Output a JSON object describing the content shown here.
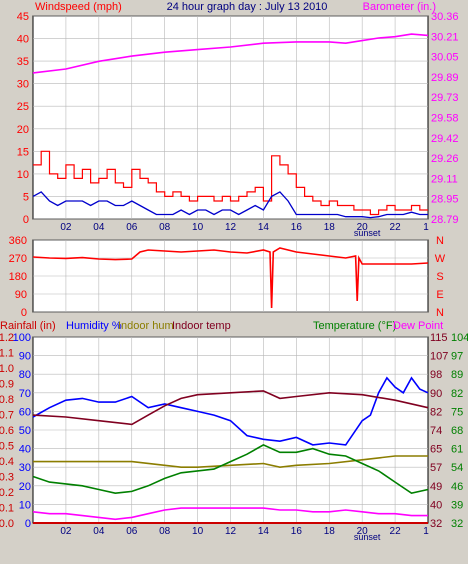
{
  "colors": {
    "background": "#d4d0c8",
    "plot_bg": "#ffffff",
    "grid": "#b8b8b8",
    "wind": "#ff0000",
    "wind_avg": "#0000cc",
    "barometer": "#ff00ff",
    "direction": "#ff0000",
    "humidity": "#0000ff",
    "indoor_hum": "#8b7d00",
    "indoor_temp": "#800020",
    "temperature": "#008000",
    "dew_point": "#ff00ff",
    "rainfall": "#cc0000",
    "title_text": "#000080"
  },
  "chart_data": [
    {
      "type": "line",
      "title": "24 hour graph day : July 13 2010",
      "left_axis_label": "Windspeed (mph)",
      "right_axis_label": "Barometer (in.)",
      "x_ticks": [
        "02",
        "04",
        "06",
        "08",
        "10",
        "12",
        "14",
        "16",
        "18",
        "20",
        "22"
      ],
      "x_end_tick": "1",
      "x_annotation": "sunset",
      "x_range": [
        0,
        24
      ],
      "left_ylim": [
        0,
        45
      ],
      "left_ticks": [
        "45",
        "40",
        "35",
        "30",
        "25",
        "20",
        "15",
        "10",
        "5",
        "0"
      ],
      "right_ylim": [
        28.79,
        30.36
      ],
      "right_ticks": [
        "30.36",
        "30.21",
        "30.05",
        "29.89",
        "29.73",
        "29.58",
        "29.42",
        "29.26",
        "29.11",
        "28.95",
        "28.79"
      ],
      "grid": true,
      "series": [
        {
          "name": "Windspeed (mph)",
          "axis": "left",
          "color": "wind",
          "x": [
            0.0,
            0.5,
            1.0,
            1.5,
            2.0,
            2.5,
            3.0,
            3.5,
            4.0,
            4.5,
            5.0,
            5.5,
            6.0,
            6.5,
            7.0,
            7.5,
            8.0,
            8.5,
            9.0,
            9.5,
            10.0,
            10.5,
            11.0,
            11.5,
            12.0,
            12.5,
            13.0,
            13.5,
            14.0,
            14.5,
            15.0,
            15.5,
            16.0,
            16.5,
            17.0,
            17.5,
            18.0,
            18.5,
            19.0,
            19.5,
            20.0,
            20.5,
            21.0,
            21.5,
            22.0,
            22.5,
            23.0,
            23.5,
            24.0
          ],
          "y": [
            12,
            15,
            10,
            9,
            12,
            9,
            11,
            8,
            9,
            11,
            8,
            7,
            11,
            9,
            8,
            6,
            5,
            6,
            5,
            4,
            5,
            5,
            4,
            5,
            4,
            5,
            6,
            7,
            4,
            14,
            12,
            10,
            7,
            5,
            4,
            3,
            4,
            3,
            3,
            2,
            2,
            1,
            2,
            3,
            2,
            2,
            3,
            2,
            2
          ]
        },
        {
          "name": "Average wind",
          "axis": "left",
          "color": "wind_avg",
          "x": [
            0.0,
            0.5,
            1.0,
            1.5,
            2.0,
            2.5,
            3.0,
            3.5,
            4.0,
            4.5,
            5.0,
            5.5,
            6.0,
            6.5,
            7.0,
            7.5,
            8.0,
            8.5,
            9.0,
            9.5,
            10.0,
            10.5,
            11.0,
            11.5,
            12.0,
            12.5,
            13.0,
            13.5,
            14.0,
            14.5,
            15.0,
            15.5,
            16.0,
            16.5,
            17.0,
            17.5,
            18.0,
            18.5,
            19.0,
            19.5,
            20.0,
            20.5,
            21.0,
            21.5,
            22.0,
            22.5,
            23.0,
            23.5,
            24.0
          ],
          "y": [
            5,
            6,
            4,
            3,
            4,
            4,
            4,
            3,
            4,
            4,
            3,
            3,
            4,
            3,
            2,
            1,
            1,
            1,
            2,
            1,
            2,
            2,
            1,
            2,
            2,
            1,
            2,
            3,
            2,
            5,
            6,
            4,
            1,
            1,
            1,
            1,
            1,
            1,
            0.5,
            0.5,
            0.5,
            0.3,
            0.5,
            1,
            1,
            1,
            1.5,
            1,
            1
          ]
        },
        {
          "name": "Barometer (in.)",
          "axis": "right",
          "color": "barometer",
          "x": [
            0,
            2,
            4,
            6,
            8,
            10,
            12,
            14,
            16,
            18,
            19,
            20,
            21,
            22,
            23,
            24
          ],
          "y": [
            29.92,
            29.95,
            30.01,
            30.05,
            30.08,
            30.1,
            30.12,
            30.15,
            30.16,
            30.16,
            30.15,
            30.17,
            30.19,
            30.2,
            30.22,
            30.21
          ]
        }
      ]
    },
    {
      "type": "line",
      "left_ylim": [
        0,
        360
      ],
      "left_ticks": [
        "360",
        "270",
        "180",
        "90",
        "0"
      ],
      "right_ticks": [
        "N",
        "W",
        "S",
        "E",
        "N"
      ],
      "x_range": [
        0,
        24
      ],
      "grid": true,
      "series": [
        {
          "name": "Wind direction",
          "axis": "left",
          "color": "direction",
          "x": [
            0,
            1,
            2,
            3,
            4,
            5,
            6,
            6.5,
            7,
            8,
            9,
            10,
            11,
            12,
            13,
            14,
            14.4,
            14.5,
            14.6,
            15,
            16,
            17,
            18,
            19,
            19.6,
            19.7,
            19.8,
            20,
            21,
            22,
            23,
            24
          ],
          "y": [
            275,
            270,
            268,
            272,
            265,
            262,
            265,
            300,
            310,
            305,
            300,
            305,
            310,
            300,
            295,
            310,
            300,
            20,
            300,
            320,
            300,
            290,
            280,
            270,
            280,
            55,
            270,
            240,
            240,
            240,
            240,
            245
          ]
        }
      ]
    },
    {
      "type": "line",
      "left_axis_label": "Rainfall (in)",
      "legend": [
        "Humidity %",
        "Indoor hum",
        "Indoor temp",
        "Temperature (°F)",
        "Dew Point"
      ],
      "rain_ticks": [
        "1.2",
        "1.1",
        "1.0",
        "0.9",
        "0.8",
        "0.7",
        "0.6",
        "0.5",
        "0.4",
        "0.3",
        "0.2",
        "0.1",
        "0.0"
      ],
      "humidity_ticks": [
        "100",
        "90",
        "80",
        "70",
        "60",
        "50",
        "40",
        "30",
        "20",
        "10",
        "0"
      ],
      "temp_in_ticks": [
        "115",
        "107",
        "98",
        "90",
        "82",
        "74",
        "65",
        "57",
        "49",
        "40",
        "32"
      ],
      "temp_out_ticks": [
        "104",
        "97",
        "89",
        "82",
        "75",
        "68",
        "61",
        "54",
        "46",
        "39",
        "32"
      ],
      "x_ticks": [
        "02",
        "04",
        "06",
        "08",
        "10",
        "12",
        "14",
        "16",
        "18",
        "20",
        "22"
      ],
      "x_end_tick": "1",
      "x_annotation": "sunset",
      "x_range": [
        0,
        24
      ],
      "grid": true,
      "series": [
        {
          "name": "Humidity %",
          "axis": "humidity",
          "color": "humidity",
          "x": [
            0,
            1,
            2,
            3,
            4,
            5,
            6,
            7,
            8,
            9,
            10,
            11,
            12,
            13,
            14,
            15,
            16,
            17,
            18,
            19,
            20,
            20.5,
            21,
            21.5,
            22,
            22.5,
            23,
            23.5,
            24
          ],
          "y": [
            57,
            62,
            66,
            67,
            65,
            65,
            68,
            62,
            64,
            62,
            60,
            58,
            55,
            47,
            45,
            44,
            46,
            42,
            43,
            42,
            55,
            58,
            70,
            78,
            73,
            70,
            78,
            72,
            70
          ]
        },
        {
          "name": "Indoor hum",
          "axis": "humidity",
          "color": "indoor_hum",
          "x": [
            0,
            2,
            4,
            6,
            8,
            9,
            10,
            12,
            14,
            15,
            16,
            18,
            20,
            22,
            24
          ],
          "y": [
            33,
            33,
            33,
            33,
            31,
            30,
            30,
            31,
            32,
            30,
            31,
            32,
            34,
            36,
            36
          ]
        },
        {
          "name": "Indoor temp",
          "axis": "humidity",
          "color": "indoor_temp",
          "x": [
            0,
            2,
            4,
            6,
            7,
            8,
            9,
            10,
            12,
            14,
            15,
            16,
            18,
            20,
            22,
            24
          ],
          "y": [
            58,
            57,
            55,
            53,
            58,
            63,
            67,
            69,
            70,
            71,
            67,
            68,
            70,
            69,
            66,
            62
          ]
        },
        {
          "name": "Temperature (°F)",
          "axis": "humidity",
          "color": "temperature",
          "x": [
            0,
            1,
            2,
            3,
            4,
            5,
            6,
            7,
            8,
            9,
            10,
            11,
            12,
            13,
            14,
            15,
            16,
            17,
            18,
            19,
            20,
            21,
            22,
            23,
            24
          ],
          "y": [
            25,
            22,
            21,
            20,
            18,
            16,
            17,
            20,
            24,
            27,
            28,
            29,
            33,
            37,
            42,
            38,
            38,
            40,
            37,
            36,
            32,
            28,
            22,
            16,
            18
          ]
        },
        {
          "name": "Dew Point",
          "axis": "humidity",
          "color": "dew_point",
          "x": [
            0,
            1,
            2,
            3,
            4,
            5,
            6,
            7,
            8,
            9,
            10,
            11,
            12,
            13,
            14,
            15,
            16,
            17,
            18,
            19,
            20,
            21,
            22,
            23,
            24
          ],
          "y": [
            6,
            5,
            5,
            4,
            3,
            2,
            3,
            5,
            7,
            8,
            8,
            8,
            8,
            8,
            8,
            7,
            7,
            6,
            6,
            7,
            6,
            5,
            5,
            4,
            4
          ]
        },
        {
          "name": "Rainfall (in)",
          "axis": "rain",
          "color": "rainfall",
          "x": [
            0,
            24
          ],
          "y": [
            0,
            0
          ]
        }
      ]
    }
  ]
}
